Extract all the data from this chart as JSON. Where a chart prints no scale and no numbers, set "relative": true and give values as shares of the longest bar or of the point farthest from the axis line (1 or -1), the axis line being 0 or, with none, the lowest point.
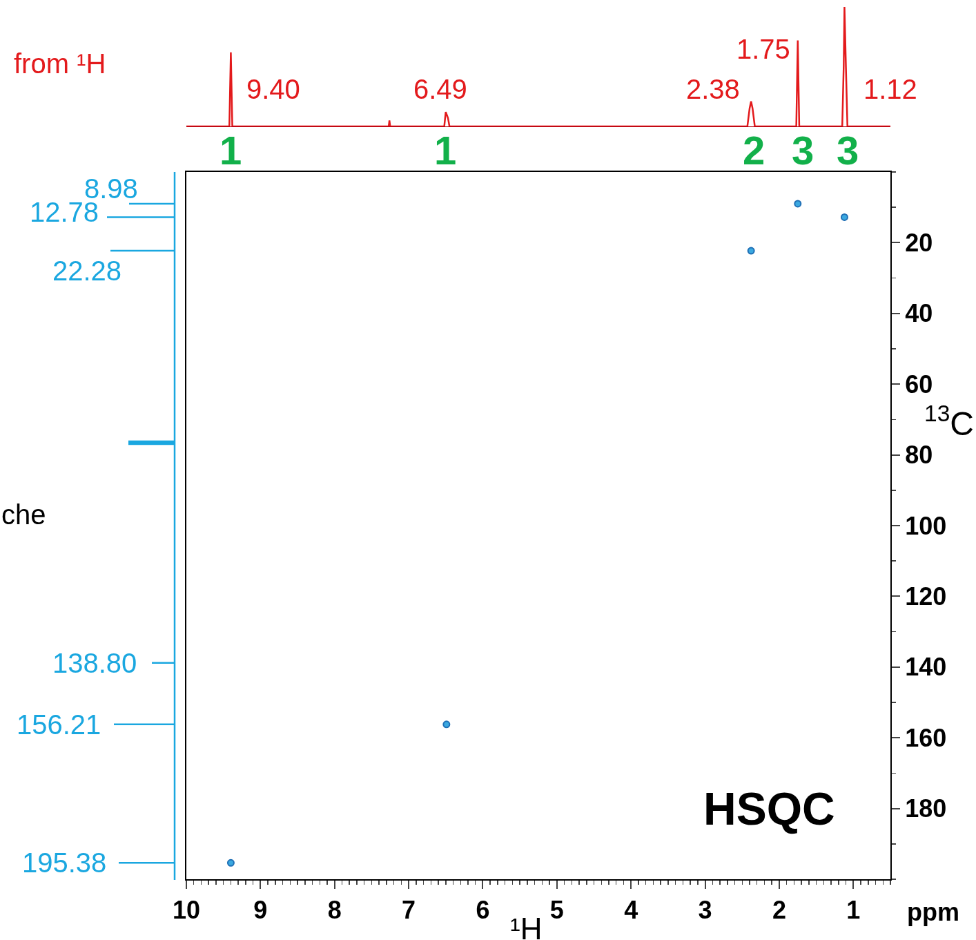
{
  "chart_data": [
    {
      "type": "line",
      "title": "from ¹H",
      "relative": true,
      "color": "#e31a1c",
      "tick_labels": false,
      "xlim": [
        10,
        0.5
      ],
      "x": [
        10.0,
        9.42,
        9.4,
        9.38,
        7.27,
        7.26,
        7.25,
        6.52,
        6.5,
        6.47,
        6.45,
        2.43,
        2.4,
        2.38,
        2.36,
        2.33,
        1.77,
        1.75,
        1.73,
        1.15,
        1.13,
        1.12,
        1.1,
        1.08,
        0.5
      ],
      "values": [
        0,
        0,
        0.62,
        0,
        0,
        0.05,
        0,
        0,
        0.12,
        0.07,
        0,
        0,
        0.15,
        0.21,
        0.15,
        0,
        0,
        0.72,
        0,
        0,
        0.51,
        1,
        0.49,
        0,
        0
      ],
      "annotations": [
        "9.40",
        "6.49",
        "2.38",
        "1.75",
        "1.12",
        "1",
        "1",
        "2",
        "3",
        "3"
      ]
    },
    {
      "type": "scatter",
      "marker": "circle",
      "color": "#1f6fb5",
      "xlim": [
        10,
        0.5
      ],
      "ylim": [
        200,
        0
      ],
      "x": [
        9.4,
        6.49,
        2.38,
        1.75,
        1.12
      ],
      "values": [
        195.38,
        156.21,
        22.28,
        8.98,
        12.78
      ],
      "xticks": [
        10,
        9,
        8,
        7,
        6,
        5,
        4,
        3,
        2,
        1
      ],
      "yticks": [
        20,
        40,
        60,
        80,
        100,
        120,
        140,
        160,
        180
      ],
      "xlabel": "¹H",
      "ylabel": "$^{13}$C",
      "grid": false,
      "ref_lines": [
        {
          "axis": "y",
          "value": 8.98,
          "label": "8.98",
          "color": "#1aa7e0"
        },
        {
          "axis": "y",
          "value": 12.78,
          "label": "12.78",
          "color": "#1aa7e0"
        },
        {
          "axis": "y",
          "value": 22.28,
          "label": "22.28",
          "color": "#1aa7e0"
        },
        {
          "axis": "y",
          "value": 138.8,
          "label": "138.80",
          "color": "#1aa7e0"
        },
        {
          "axis": "y",
          "value": 156.21,
          "label": "156.21",
          "color": "#1aa7e0"
        },
        {
          "axis": "y",
          "value": 195.38,
          "label": "195.38",
          "color": "#1aa7e0"
        }
      ],
      "annotations": [
        "HSQC",
        "ppm",
        "che"
      ]
    }
  ]
}
